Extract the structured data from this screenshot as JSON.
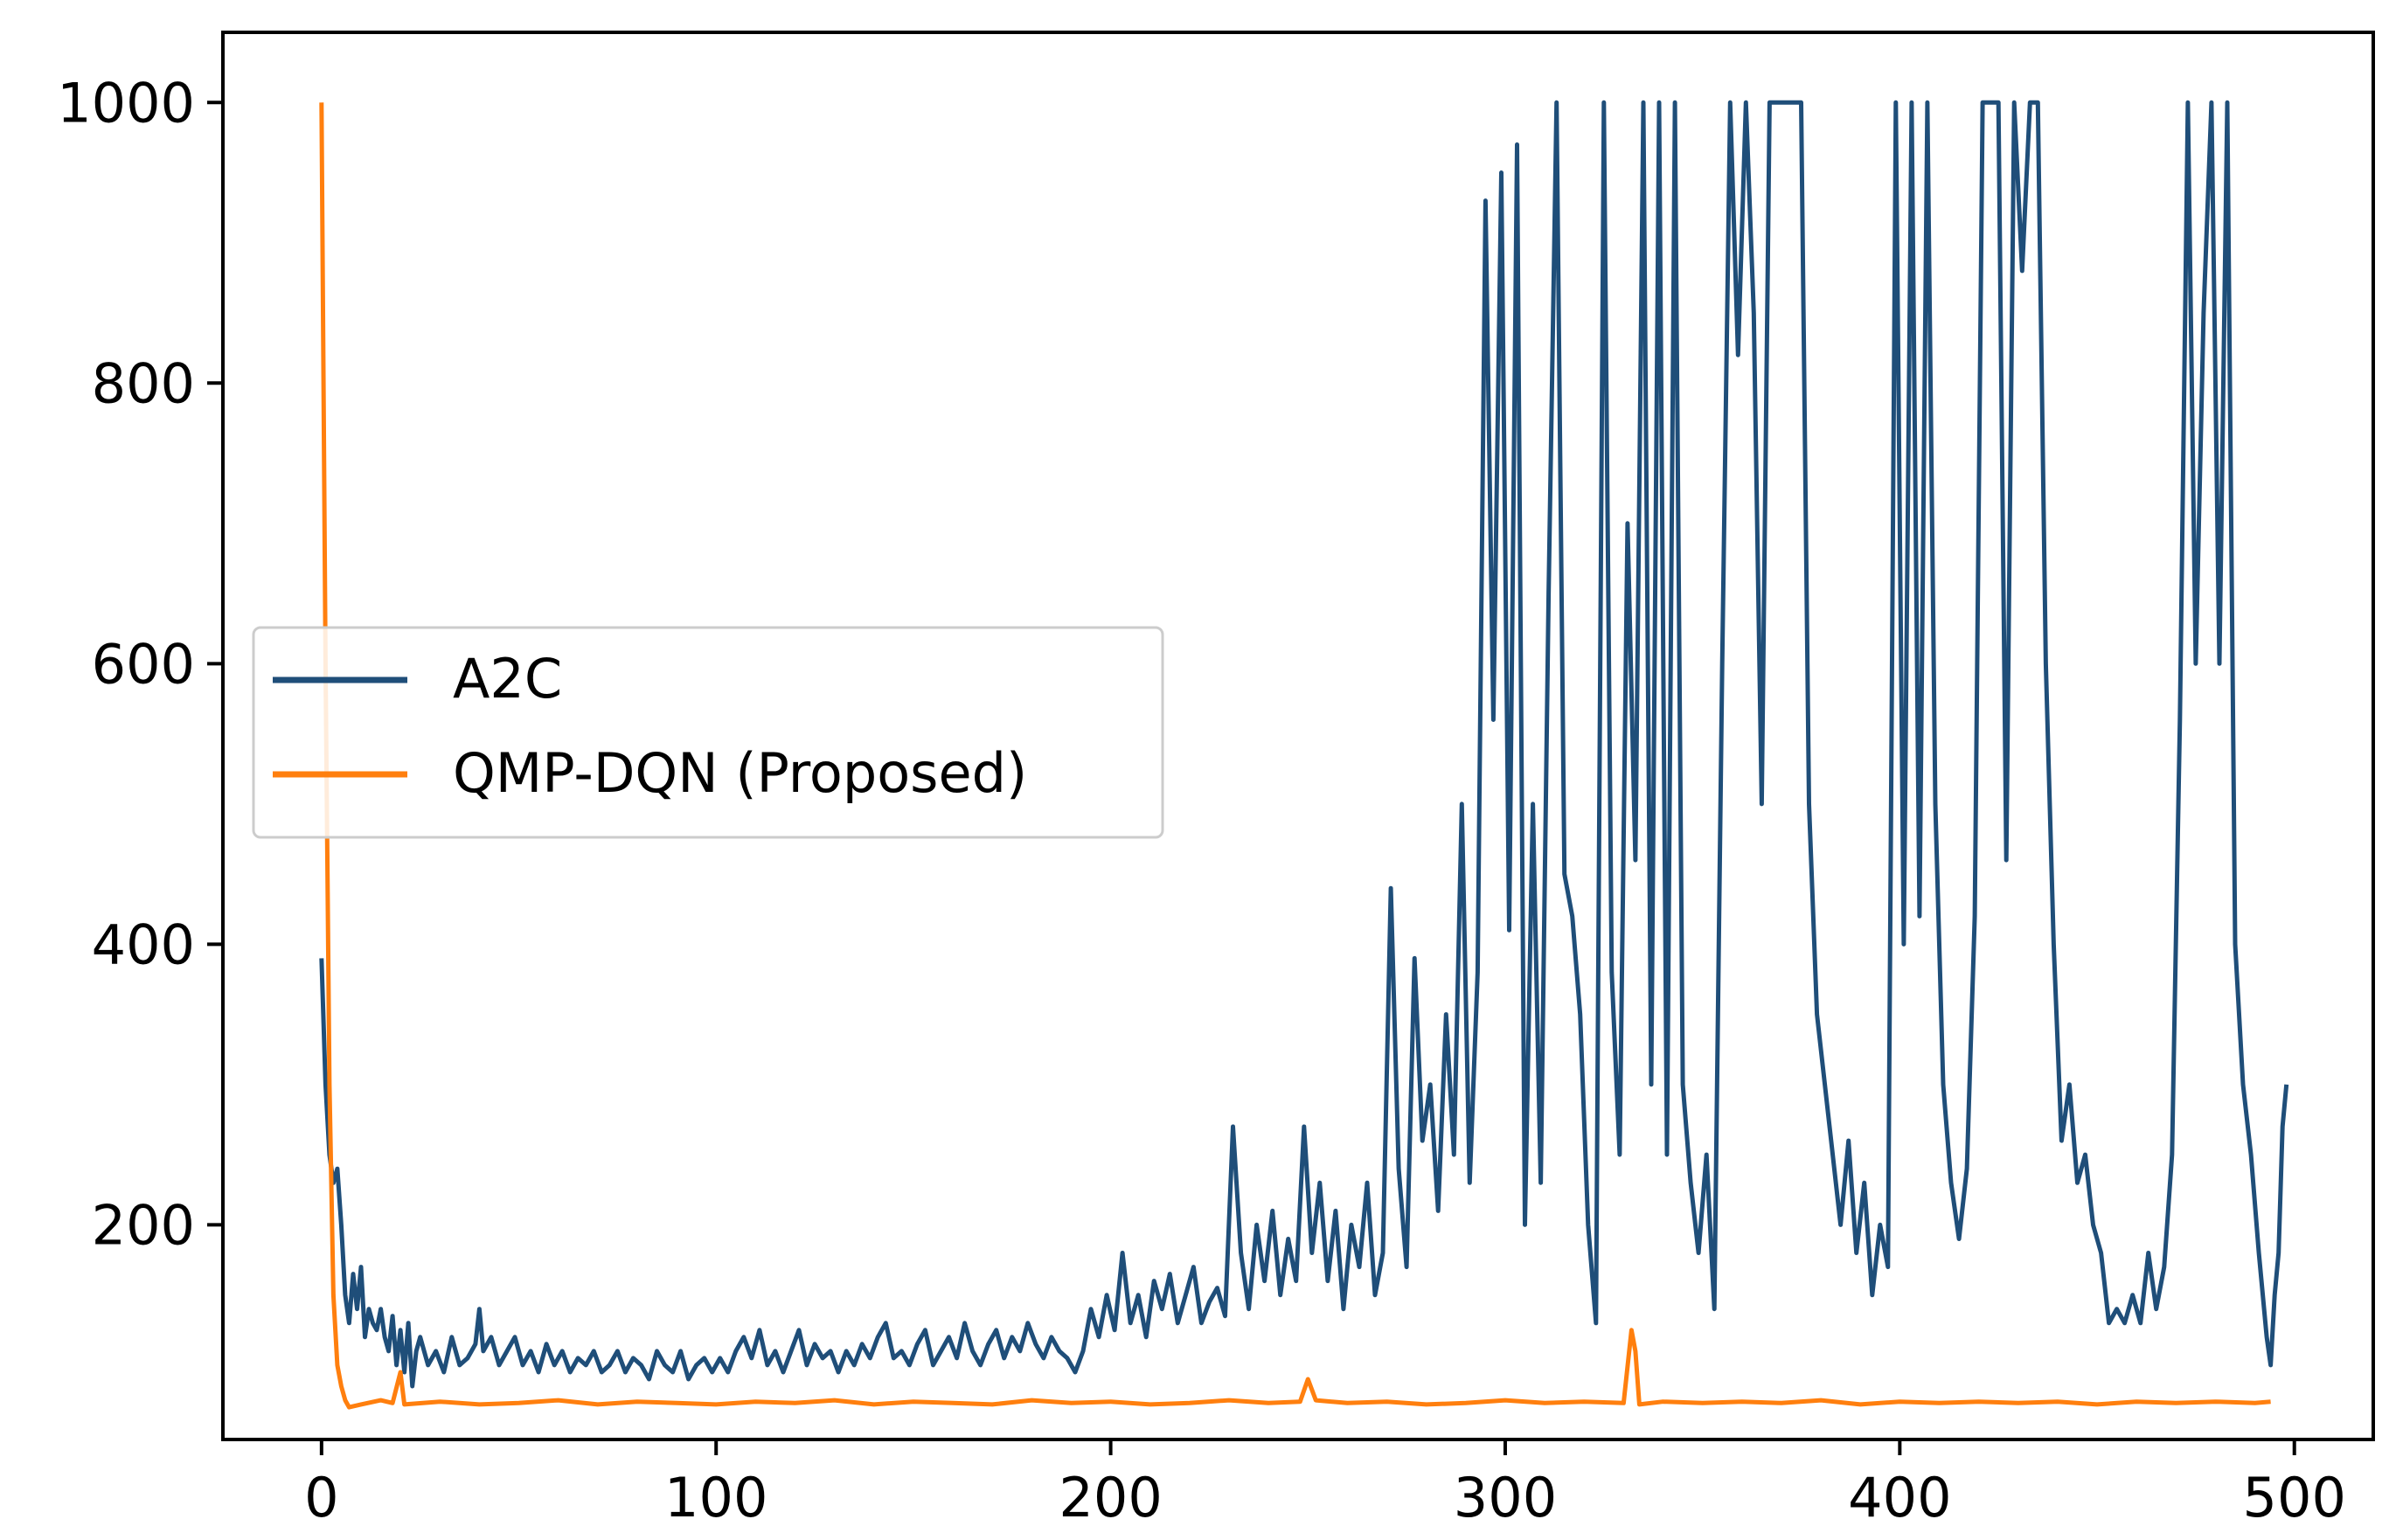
{
  "chart_data": {
    "type": "line",
    "title": "",
    "xlabel": "",
    "ylabel": "",
    "xlim": [
      -25,
      520
    ],
    "ylim": [
      47,
      1050
    ],
    "xticks": [
      0,
      100,
      200,
      300,
      400,
      500
    ],
    "yticks": [
      200,
      400,
      600,
      800,
      1000
    ],
    "grid": false,
    "legend_position": "center-left",
    "series": [
      {
        "name": "A2C",
        "color": "#1f4e79",
        "points": [
          [
            0,
            390
          ],
          [
            1,
            300
          ],
          [
            2,
            250
          ],
          [
            3,
            230
          ],
          [
            4,
            240
          ],
          [
            5,
            200
          ],
          [
            6,
            150
          ],
          [
            7,
            130
          ],
          [
            8,
            165
          ],
          [
            9,
            140
          ],
          [
            10,
            170
          ],
          [
            11,
            120
          ],
          [
            12,
            140
          ],
          [
            13,
            130
          ],
          [
            14,
            125
          ],
          [
            15,
            140
          ],
          [
            16,
            120
          ],
          [
            17,
            110
          ],
          [
            18,
            135
          ],
          [
            19,
            100
          ],
          [
            20,
            125
          ],
          [
            21,
            95
          ],
          [
            22,
            130
          ],
          [
            23,
            85
          ],
          [
            24,
            110
          ],
          [
            25,
            120
          ],
          [
            27,
            100
          ],
          [
            29,
            110
          ],
          [
            31,
            95
          ],
          [
            33,
            120
          ],
          [
            35,
            100
          ],
          [
            37,
            105
          ],
          [
            39,
            115
          ],
          [
            40,
            140
          ],
          [
            41,
            110
          ],
          [
            43,
            120
          ],
          [
            45,
            100
          ],
          [
            47,
            110
          ],
          [
            49,
            120
          ],
          [
            51,
            100
          ],
          [
            53,
            110
          ],
          [
            55,
            95
          ],
          [
            57,
            115
          ],
          [
            59,
            100
          ],
          [
            61,
            110
          ],
          [
            63,
            95
          ],
          [
            65,
            105
          ],
          [
            67,
            100
          ],
          [
            69,
            110
          ],
          [
            71,
            95
          ],
          [
            73,
            100
          ],
          [
            75,
            110
          ],
          [
            77,
            95
          ],
          [
            79,
            105
          ],
          [
            81,
            100
          ],
          [
            83,
            90
          ],
          [
            85,
            110
          ],
          [
            87,
            100
          ],
          [
            89,
            95
          ],
          [
            91,
            110
          ],
          [
            93,
            90
          ],
          [
            95,
            100
          ],
          [
            97,
            105
          ],
          [
            99,
            95
          ],
          [
            101,
            105
          ],
          [
            103,
            95
          ],
          [
            105,
            110
          ],
          [
            107,
            120
          ],
          [
            109,
            105
          ],
          [
            111,
            125
          ],
          [
            113,
            100
          ],
          [
            115,
            110
          ],
          [
            117,
            95
          ],
          [
            119,
            110
          ],
          [
            121,
            125
          ],
          [
            123,
            100
          ],
          [
            125,
            115
          ],
          [
            127,
            105
          ],
          [
            129,
            110
          ],
          [
            131,
            95
          ],
          [
            133,
            110
          ],
          [
            135,
            100
          ],
          [
            137,
            115
          ],
          [
            139,
            105
          ],
          [
            141,
            120
          ],
          [
            143,
            130
          ],
          [
            145,
            105
          ],
          [
            147,
            110
          ],
          [
            149,
            100
          ],
          [
            151,
            115
          ],
          [
            153,
            125
          ],
          [
            155,
            100
          ],
          [
            157,
            110
          ],
          [
            159,
            120
          ],
          [
            161,
            105
          ],
          [
            163,
            130
          ],
          [
            165,
            110
          ],
          [
            167,
            100
          ],
          [
            169,
            115
          ],
          [
            171,
            125
          ],
          [
            173,
            105
          ],
          [
            175,
            120
          ],
          [
            177,
            110
          ],
          [
            179,
            130
          ],
          [
            181,
            115
          ],
          [
            183,
            105
          ],
          [
            185,
            120
          ],
          [
            187,
            110
          ],
          [
            189,
            105
          ],
          [
            191,
            95
          ],
          [
            193,
            110
          ],
          [
            195,
            140
          ],
          [
            197,
            120
          ],
          [
            199,
            150
          ],
          [
            201,
            125
          ],
          [
            203,
            180
          ],
          [
            205,
            130
          ],
          [
            207,
            150
          ],
          [
            209,
            120
          ],
          [
            211,
            160
          ],
          [
            213,
            140
          ],
          [
            215,
            165
          ],
          [
            217,
            130
          ],
          [
            219,
            150
          ],
          [
            221,
            170
          ],
          [
            223,
            130
          ],
          [
            225,
            145
          ],
          [
            227,
            155
          ],
          [
            229,
            135
          ],
          [
            231,
            270
          ],
          [
            233,
            180
          ],
          [
            235,
            140
          ],
          [
            237,
            200
          ],
          [
            239,
            160
          ],
          [
            241,
            210
          ],
          [
            243,
            150
          ],
          [
            245,
            190
          ],
          [
            247,
            160
          ],
          [
            249,
            270
          ],
          [
            251,
            180
          ],
          [
            253,
            230
          ],
          [
            255,
            160
          ],
          [
            257,
            210
          ],
          [
            259,
            140
          ],
          [
            261,
            200
          ],
          [
            263,
            170
          ],
          [
            265,
            230
          ],
          [
            267,
            150
          ],
          [
            269,
            180
          ],
          [
            271,
            440
          ],
          [
            273,
            240
          ],
          [
            275,
            170
          ],
          [
            277,
            390
          ],
          [
            279,
            260
          ],
          [
            281,
            300
          ],
          [
            283,
            210
          ],
          [
            285,
            350
          ],
          [
            287,
            250
          ],
          [
            289,
            500
          ],
          [
            291,
            230
          ],
          [
            293,
            380
          ],
          [
            295,
            930
          ],
          [
            297,
            560
          ],
          [
            299,
            950
          ],
          [
            301,
            410
          ],
          [
            303,
            970
          ],
          [
            305,
            200
          ],
          [
            307,
            500
          ],
          [
            309,
            230
          ],
          [
            311,
            650
          ],
          [
            313,
            1000
          ],
          [
            315,
            450
          ],
          [
            317,
            420
          ],
          [
            319,
            350
          ],
          [
            321,
            200
          ],
          [
            323,
            130
          ],
          [
            325,
            1000
          ],
          [
            327,
            380
          ],
          [
            329,
            250
          ],
          [
            331,
            700
          ],
          [
            333,
            460
          ],
          [
            335,
            1000
          ],
          [
            337,
            300
          ],
          [
            339,
            1000
          ],
          [
            341,
            250
          ],
          [
            343,
            1000
          ],
          [
            345,
            300
          ],
          [
            347,
            230
          ],
          [
            349,
            180
          ],
          [
            351,
            250
          ],
          [
            353,
            140
          ],
          [
            355,
            600
          ],
          [
            357,
            1000
          ],
          [
            359,
            820
          ],
          [
            361,
            1000
          ],
          [
            363,
            850
          ],
          [
            365,
            500
          ],
          [
            367,
            1000
          ],
          [
            369,
            1000
          ],
          [
            371,
            1000
          ],
          [
            373,
            1000
          ],
          [
            375,
            1000
          ],
          [
            377,
            500
          ],
          [
            379,
            350
          ],
          [
            381,
            300
          ],
          [
            383,
            250
          ],
          [
            385,
            200
          ],
          [
            387,
            260
          ],
          [
            389,
            180
          ],
          [
            391,
            230
          ],
          [
            393,
            150
          ],
          [
            395,
            200
          ],
          [
            397,
            170
          ],
          [
            399,
            1000
          ],
          [
            401,
            400
          ],
          [
            403,
            1000
          ],
          [
            405,
            420
          ],
          [
            407,
            1000
          ],
          [
            409,
            500
          ],
          [
            411,
            300
          ],
          [
            413,
            230
          ],
          [
            415,
            190
          ],
          [
            417,
            240
          ],
          [
            419,
            420
          ],
          [
            421,
            1000
          ],
          [
            423,
            1000
          ],
          [
            425,
            1000
          ],
          [
            427,
            460
          ],
          [
            429,
            1000
          ],
          [
            431,
            880
          ],
          [
            433,
            1000
          ],
          [
            435,
            1000
          ],
          [
            437,
            600
          ],
          [
            439,
            400
          ],
          [
            441,
            260
          ],
          [
            443,
            300
          ],
          [
            445,
            230
          ],
          [
            447,
            250
          ],
          [
            449,
            200
          ],
          [
            451,
            180
          ],
          [
            453,
            130
          ],
          [
            455,
            140
          ],
          [
            457,
            130
          ],
          [
            459,
            150
          ],
          [
            461,
            130
          ],
          [
            463,
            180
          ],
          [
            465,
            140
          ],
          [
            467,
            170
          ],
          [
            469,
            250
          ],
          [
            471,
            560
          ],
          [
            473,
            1000
          ],
          [
            475,
            600
          ],
          [
            477,
            850
          ],
          [
            479,
            1000
          ],
          [
            481,
            600
          ],
          [
            483,
            1000
          ],
          [
            485,
            400
          ],
          [
            487,
            300
          ],
          [
            489,
            250
          ],
          [
            491,
            180
          ],
          [
            493,
            120
          ],
          [
            494,
            100
          ],
          [
            495,
            150
          ],
          [
            496,
            180
          ],
          [
            497,
            270
          ],
          [
            498,
            300
          ]
        ]
      },
      {
        "name": "QMP-DQN (Proposed)",
        "color": "#ff7f0e",
        "points": [
          [
            0,
            1000
          ],
          [
            1,
            600
          ],
          [
            2,
            300
          ],
          [
            3,
            150
          ],
          [
            4,
            100
          ],
          [
            5,
            85
          ],
          [
            6,
            75
          ],
          [
            7,
            70
          ],
          [
            10,
            72
          ],
          [
            15,
            75
          ],
          [
            18,
            73
          ],
          [
            20,
            95
          ],
          [
            21,
            72
          ],
          [
            30,
            74
          ],
          [
            40,
            72
          ],
          [
            50,
            73
          ],
          [
            60,
            75
          ],
          [
            70,
            72
          ],
          [
            80,
            74
          ],
          [
            90,
            73
          ],
          [
            100,
            72
          ],
          [
            110,
            74
          ],
          [
            120,
            73
          ],
          [
            130,
            75
          ],
          [
            140,
            72
          ],
          [
            150,
            74
          ],
          [
            160,
            73
          ],
          [
            170,
            72
          ],
          [
            180,
            75
          ],
          [
            190,
            73
          ],
          [
            200,
            74
          ],
          [
            210,
            72
          ],
          [
            220,
            73
          ],
          [
            230,
            75
          ],
          [
            240,
            73
          ],
          [
            248,
            74
          ],
          [
            250,
            90
          ],
          [
            252,
            75
          ],
          [
            260,
            73
          ],
          [
            270,
            74
          ],
          [
            280,
            72
          ],
          [
            290,
            73
          ],
          [
            300,
            75
          ],
          [
            310,
            73
          ],
          [
            320,
            74
          ],
          [
            330,
            73
          ],
          [
            332,
            125
          ],
          [
            333,
            110
          ],
          [
            334,
            72
          ],
          [
            340,
            74
          ],
          [
            350,
            73
          ],
          [
            360,
            74
          ],
          [
            370,
            73
          ],
          [
            380,
            75
          ],
          [
            390,
            72
          ],
          [
            400,
            74
          ],
          [
            410,
            73
          ],
          [
            420,
            74
          ],
          [
            430,
            73
          ],
          [
            440,
            74
          ],
          [
            450,
            72
          ],
          [
            460,
            74
          ],
          [
            470,
            73
          ],
          [
            480,
            74
          ],
          [
            490,
            73
          ],
          [
            494,
            74
          ]
        ]
      }
    ]
  }
}
